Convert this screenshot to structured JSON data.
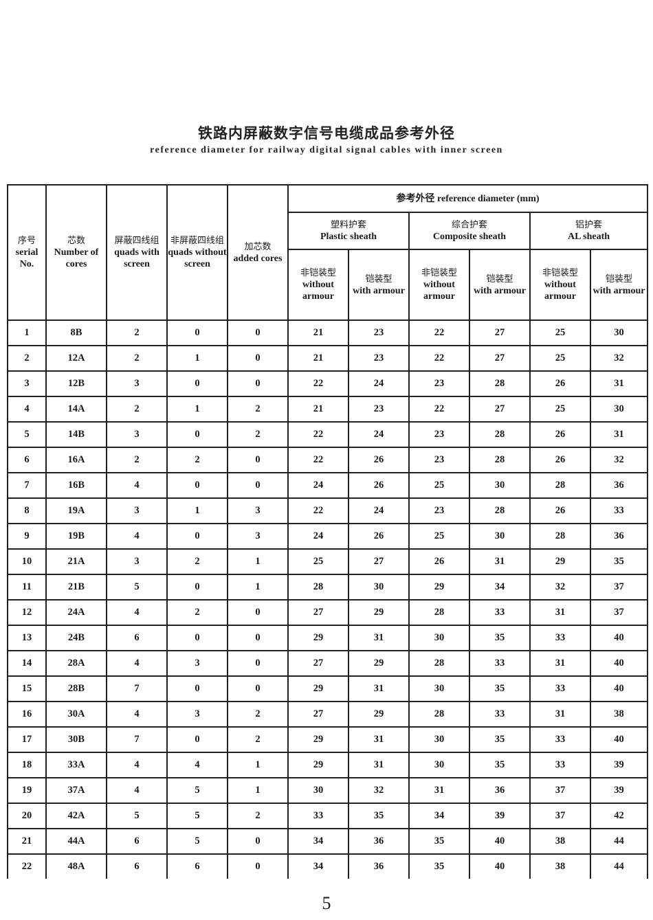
{
  "title_cn": "铁路内屏蔽数字信号电缆成品参考外径",
  "title_en": "reference diameter for railway digital signal cables with inner screen",
  "headers": {
    "serial": {
      "cn": "序号",
      "en": "serial No."
    },
    "cores": {
      "cn": "芯数",
      "en": "Number of cores"
    },
    "quads_screen": {
      "cn": "屏蔽四线组",
      "en": "quads with screen"
    },
    "quads_noscreen": {
      "cn": "非屏蔽四线组",
      "en": "quads without screen"
    },
    "added": {
      "cn": "加芯数",
      "en": "added cores"
    },
    "ref": "参考外径 reference diameter (mm)",
    "plastic": {
      "cn": "塑料护套",
      "en": "Plastic sheath"
    },
    "composite": {
      "cn": "综合护套",
      "en": "Composite sheath"
    },
    "al": {
      "cn": "铝护套",
      "en": "AL  sheath"
    },
    "without": {
      "cn": "非铠装型",
      "en": "without armour"
    },
    "with": {
      "cn": "铠装型",
      "en": "with armour"
    }
  },
  "rows": [
    [
      "1",
      "8B",
      "2",
      "0",
      "0",
      "21",
      "23",
      "22",
      "27",
      "25",
      "30"
    ],
    [
      "2",
      "12A",
      "2",
      "1",
      "0",
      "21",
      "23",
      "22",
      "27",
      "25",
      "32"
    ],
    [
      "3",
      "12B",
      "3",
      "0",
      "0",
      "22",
      "24",
      "23",
      "28",
      "26",
      "31"
    ],
    [
      "4",
      "14A",
      "2",
      "1",
      "2",
      "21",
      "23",
      "22",
      "27",
      "25",
      "30"
    ],
    [
      "5",
      "14B",
      "3",
      "0",
      "2",
      "22",
      "24",
      "23",
      "28",
      "26",
      "31"
    ],
    [
      "6",
      "16A",
      "2",
      "2",
      "0",
      "22",
      "26",
      "23",
      "28",
      "26",
      "32"
    ],
    [
      "7",
      "16B",
      "4",
      "0",
      "0",
      "24",
      "26",
      "25",
      "30",
      "28",
      "36"
    ],
    [
      "8",
      "19A",
      "3",
      "1",
      "3",
      "22",
      "24",
      "23",
      "28",
      "26",
      "33"
    ],
    [
      "9",
      "19B",
      "4",
      "0",
      "3",
      "24",
      "26",
      "25",
      "30",
      "28",
      "36"
    ],
    [
      "10",
      "21A",
      "3",
      "2",
      "1",
      "25",
      "27",
      "26",
      "31",
      "29",
      "35"
    ],
    [
      "11",
      "21B",
      "5",
      "0",
      "1",
      "28",
      "30",
      "29",
      "34",
      "32",
      "37"
    ],
    [
      "12",
      "24A",
      "4",
      "2",
      "0",
      "27",
      "29",
      "28",
      "33",
      "31",
      "37"
    ],
    [
      "13",
      "24B",
      "6",
      "0",
      "0",
      "29",
      "31",
      "30",
      "35",
      "33",
      "40"
    ],
    [
      "14",
      "28A",
      "4",
      "3",
      "0",
      "27",
      "29",
      "28",
      "33",
      "31",
      "40"
    ],
    [
      "15",
      "28B",
      "7",
      "0",
      "0",
      "29",
      "31",
      "30",
      "35",
      "33",
      "40"
    ],
    [
      "16",
      "30A",
      "4",
      "3",
      "2",
      "27",
      "29",
      "28",
      "33",
      "31",
      "38"
    ],
    [
      "17",
      "30B",
      "7",
      "0",
      "2",
      "29",
      "31",
      "30",
      "35",
      "33",
      "40"
    ],
    [
      "18",
      "33A",
      "4",
      "4",
      "1",
      "29",
      "31",
      "30",
      "35",
      "33",
      "39"
    ],
    [
      "19",
      "37A",
      "4",
      "5",
      "1",
      "30",
      "32",
      "31",
      "36",
      "37",
      "39"
    ],
    [
      "20",
      "42A",
      "5",
      "5",
      "2",
      "33",
      "35",
      "34",
      "39",
      "37",
      "42"
    ],
    [
      "21",
      "44A",
      "6",
      "5",
      "0",
      "34",
      "36",
      "35",
      "40",
      "38",
      "44"
    ],
    [
      "22",
      "48A",
      "6",
      "6",
      "0",
      "34",
      "36",
      "35",
      "40",
      "38",
      "44"
    ]
  ],
  "page_number": "5"
}
